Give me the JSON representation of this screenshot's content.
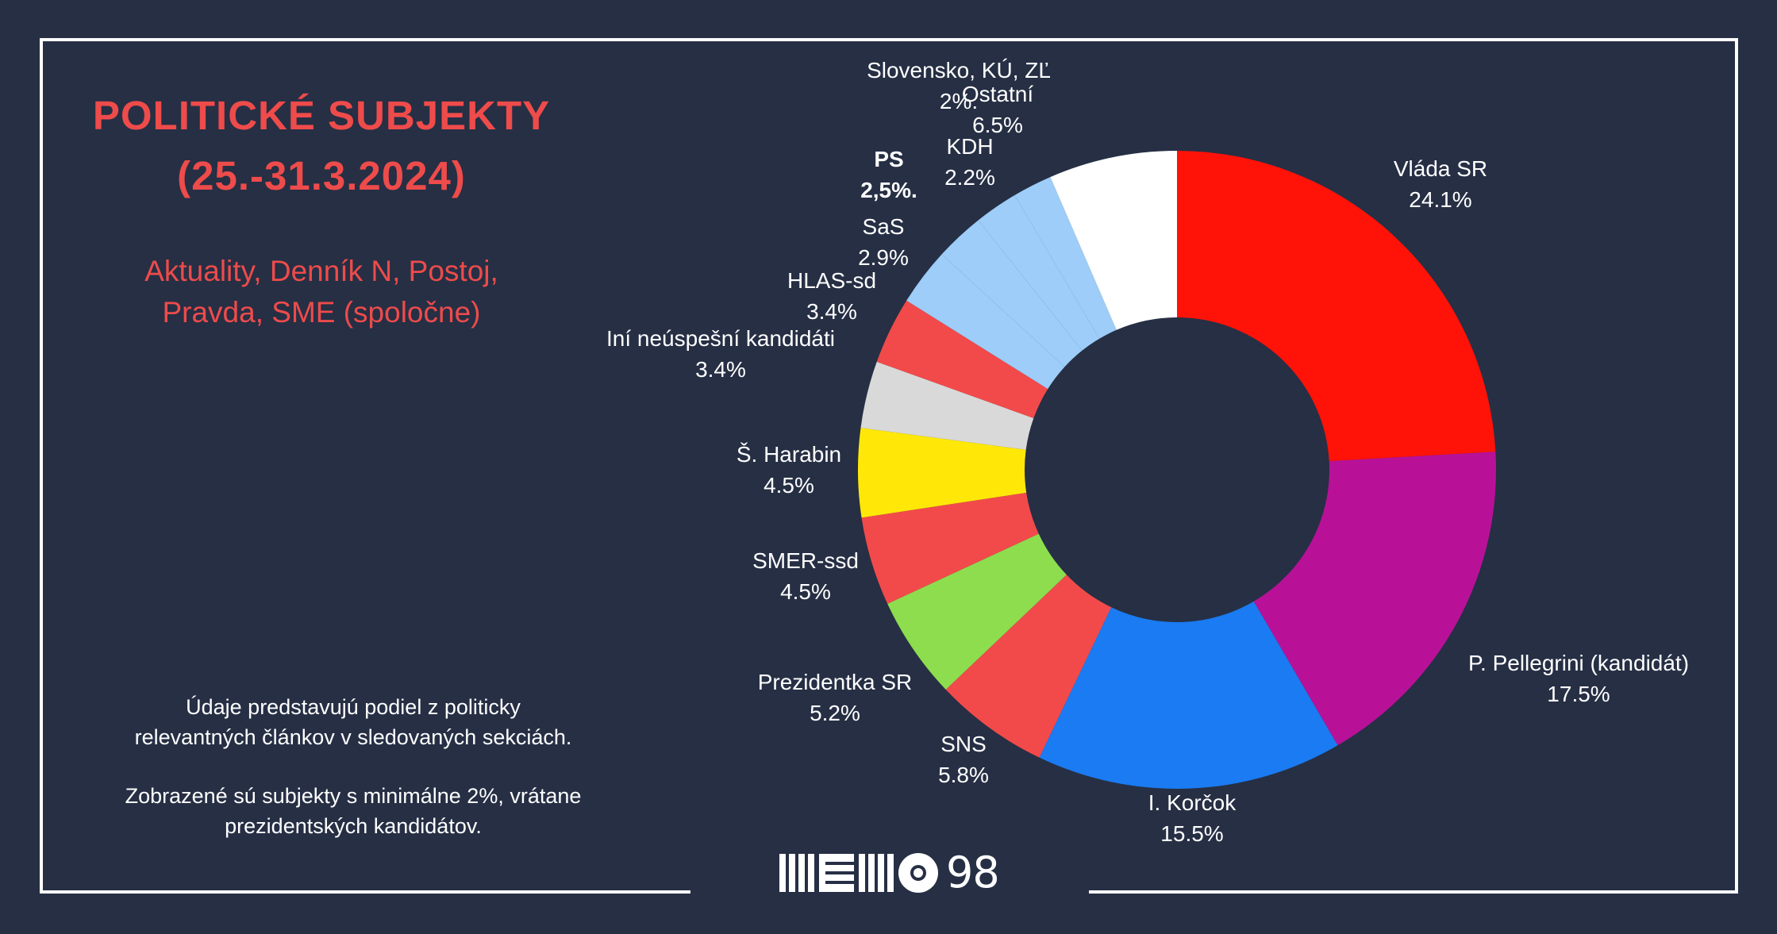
{
  "title_line1": "POLITICKÉ SUBJEKTY",
  "title_line2": "(25.-31.3.2024)",
  "subtitle_line1": "Aktuality, Denník N, Postoj,",
  "subtitle_line2": "Pravda, SME (spoločne)",
  "note1_line1": "Údaje predstavujú podiel z politicky",
  "note1_line2": "relevantných článkov v sledovaných sekciách.",
  "note2_line1": "Zobrazené sú subjekty s minimálne 2%, vrátane",
  "note2_line2": "prezidentských kandidátov.",
  "logo_text": "98",
  "chart_data": {
    "type": "pie",
    "donut": true,
    "categories": [
      "Vláda SR",
      "P. Pellegrini (kandidát)",
      "I. Korčok",
      "SNS",
      "Prezidentka SR",
      "SMER-ssd",
      "Š. Harabin",
      "Iní neúspešní kandidáti",
      "HLAS-sd",
      "SaS",
      "PS",
      "KDH",
      "Slovensko, KÚ, ZĽ",
      "Ostatní"
    ],
    "values": [
      24.1,
      17.5,
      15.5,
      5.8,
      5.2,
      4.5,
      4.5,
      3.4,
      3.4,
      2.9,
      2.5,
      2.2,
      2.0,
      6.5
    ],
    "value_labels": [
      "24.1%",
      "17.5%",
      "15.5%",
      "5.8%",
      "5.2%",
      "4.5%",
      "4.5%",
      "3.4%",
      "3.4%",
      "2.9%",
      "2,5%.",
      "2.2%",
      "2%.",
      "6.5%"
    ],
    "colors": [
      "#ff1208",
      "#b81198",
      "#1a7bf2",
      "#f24a4a",
      "#8ddd4e",
      "#f24a4a",
      "#ffe808",
      "#d9d9d9",
      "#f24a4a",
      "#9dcdf8",
      "#9dcdf8",
      "#9dcdf8",
      "#9dcdf8",
      "#ffffff"
    ],
    "bold_labels": [
      "PS"
    ]
  }
}
